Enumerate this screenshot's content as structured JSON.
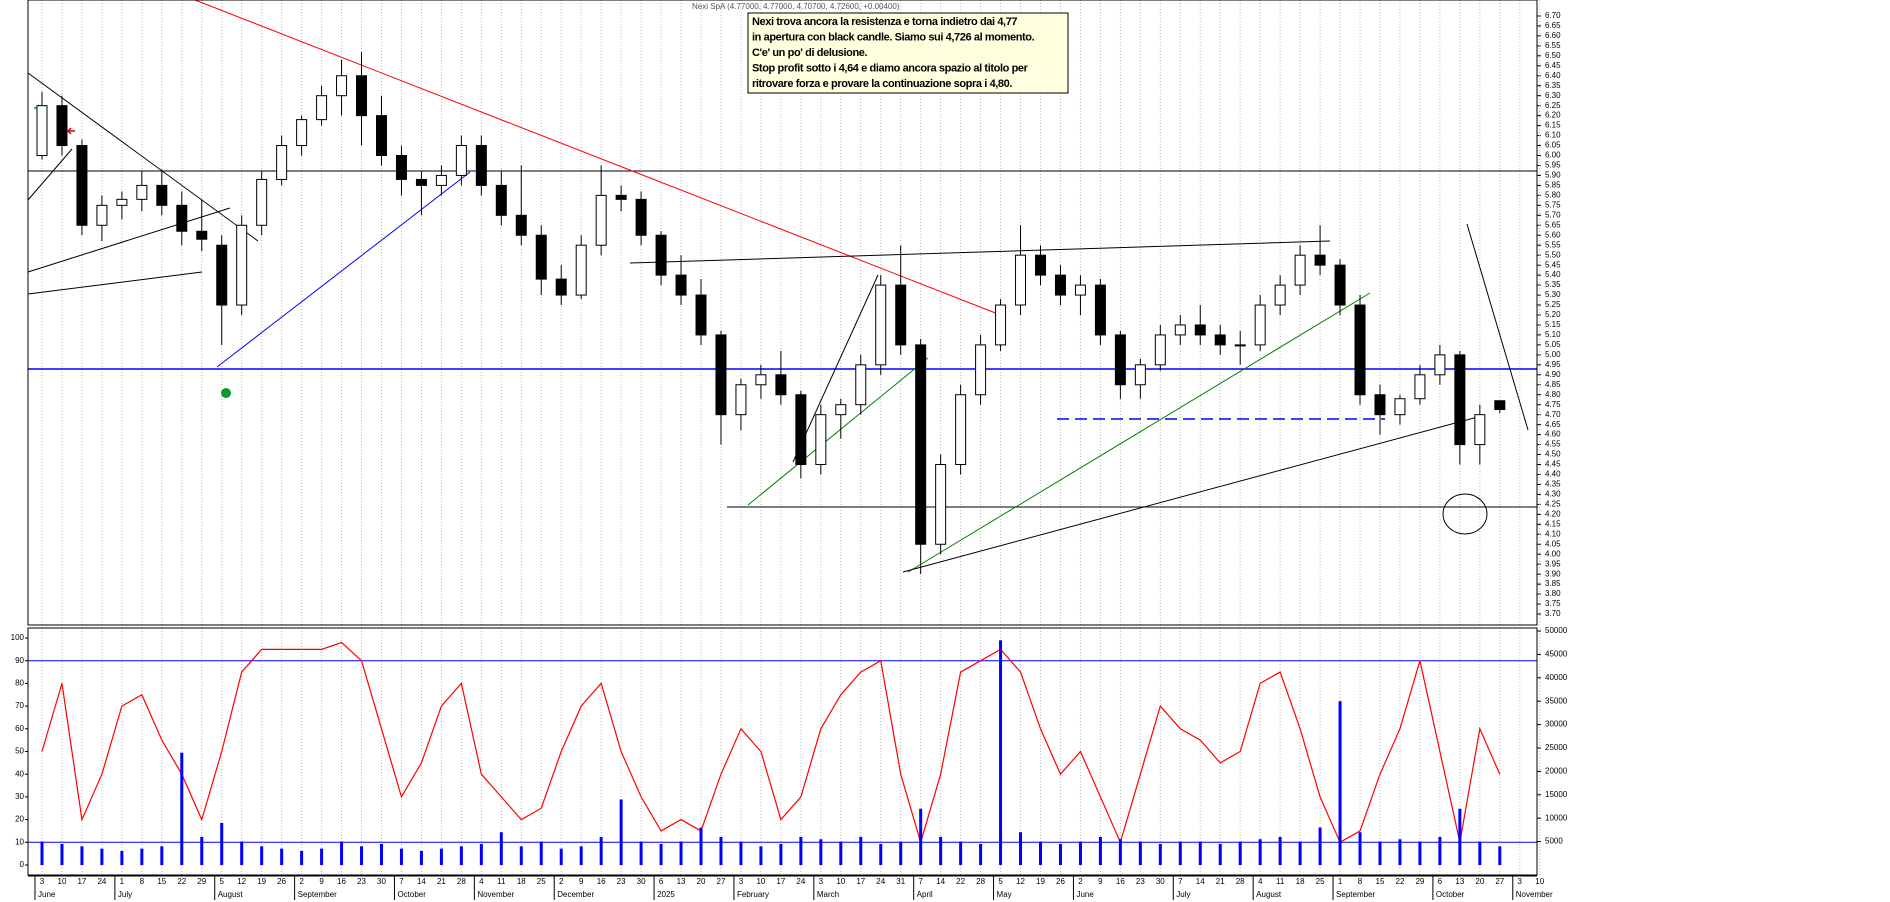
{
  "chart_data": [
    {
      "type": "candlestick",
      "title": "Nexi SpA (4.77000, 4.77000, 4.70700, 4.72600, +0.00400)",
      "annotation": [
        "Nexi trova ancora la resistenza e torna indietro dai 4,77",
        "in apertura con black candle. Siamo sui 4,726 al momento.",
        "C'e' un po' di delusione.",
        "Stop profit sotto i 4,64 e diamo ancora spazio al titolo per",
        "ritrovare forza e provare la continuazione sopra i 4,80."
      ],
      "categories": [
        "3",
        "10",
        "17",
        "24",
        "1",
        "8",
        "15",
        "22",
        "29",
        "5",
        "12",
        "19",
        "26",
        "2",
        "9",
        "16",
        "23",
        "30",
        "7",
        "14",
        "21",
        "28",
        "4",
        "11",
        "18",
        "25",
        "2",
        "9",
        "16",
        "23",
        "30",
        "6",
        "13",
        "20",
        "27",
        "3",
        "10",
        "17",
        "24",
        "3",
        "10",
        "17",
        "24",
        "31",
        "7",
        "14",
        "22",
        "28",
        "5",
        "12",
        "19",
        "26",
        "2",
        "9",
        "16",
        "23",
        "30",
        "7",
        "14",
        "21",
        "28",
        "4",
        "11",
        "18",
        "25",
        "1",
        "8",
        "15",
        "22",
        "29",
        "6",
        "13",
        "20",
        "27",
        "3",
        "10"
      ],
      "months": [
        "June",
        null,
        null,
        null,
        "July",
        null,
        null,
        null,
        null,
        "August",
        null,
        null,
        null,
        "September",
        null,
        null,
        null,
        null,
        "October",
        null,
        null,
        null,
        "November",
        null,
        null,
        null,
        "December",
        null,
        null,
        null,
        null,
        "2025",
        null,
        null,
        null,
        "February",
        null,
        null,
        null,
        "March",
        null,
        null,
        null,
        null,
        "April",
        null,
        null,
        null,
        "May",
        null,
        null,
        null,
        "June",
        null,
        null,
        null,
        null,
        "July",
        null,
        null,
        null,
        "August",
        null,
        null,
        null,
        "September",
        null,
        null,
        null,
        null,
        "October",
        null,
        null,
        null,
        "November",
        null
      ],
      "open": [
        6.0,
        6.25,
        6.05,
        5.65,
        5.75,
        5.78,
        5.85,
        5.75,
        5.62,
        5.55,
        5.25,
        5.65,
        5.88,
        6.05,
        6.18,
        6.3,
        6.4,
        6.2,
        6.0,
        5.88,
        5.85,
        5.9,
        6.05,
        5.85,
        5.7,
        5.6,
        5.38,
        5.3,
        5.55,
        5.8,
        5.78,
        5.6,
        5.4,
        5.3,
        5.1,
        4.7,
        4.85,
        4.9,
        4.8,
        4.45,
        4.7,
        4.75,
        4.95,
        5.35,
        5.05,
        4.05,
        4.45,
        4.8,
        5.05,
        5.25,
        5.5,
        5.4,
        5.3,
        5.35,
        5.1,
        4.85,
        4.95,
        5.1,
        5.15,
        5.1,
        5.05,
        5.05,
        5.25,
        5.35,
        5.5,
        5.45,
        5.25,
        4.8,
        4.7,
        4.78,
        4.9,
        5.0,
        4.55,
        4.77,
        null,
        null
      ],
      "high": [
        6.32,
        6.3,
        6.08,
        5.8,
        5.82,
        5.92,
        5.93,
        5.82,
        5.78,
        5.6,
        5.7,
        5.92,
        6.1,
        6.2,
        6.35,
        6.48,
        6.52,
        6.3,
        6.05,
        5.92,
        5.95,
        6.1,
        6.1,
        5.92,
        5.95,
        5.65,
        5.45,
        5.6,
        5.95,
        5.85,
        5.82,
        5.62,
        5.5,
        5.38,
        5.12,
        4.88,
        4.95,
        5.02,
        4.82,
        4.75,
        4.78,
        5.0,
        5.4,
        5.55,
        5.08,
        4.5,
        4.85,
        5.1,
        5.28,
        5.65,
        5.55,
        5.45,
        5.4,
        5.38,
        5.12,
        4.98,
        5.15,
        5.2,
        5.25,
        5.15,
        5.12,
        5.3,
        5.4,
        5.55,
        5.65,
        5.48,
        5.3,
        4.85,
        4.8,
        4.95,
        5.05,
        5.02,
        4.75,
        4.77,
        null,
        null
      ],
      "low": [
        5.98,
        6.0,
        5.6,
        5.57,
        5.68,
        5.72,
        5.7,
        5.55,
        5.52,
        5.05,
        5.2,
        5.6,
        5.85,
        6.0,
        6.15,
        6.2,
        6.05,
        5.95,
        5.8,
        5.7,
        5.8,
        5.85,
        5.8,
        5.65,
        5.55,
        5.3,
        5.25,
        5.28,
        5.5,
        5.72,
        5.55,
        5.35,
        5.25,
        5.05,
        4.55,
        4.62,
        4.78,
        4.75,
        4.38,
        4.4,
        4.58,
        4.7,
        4.9,
        5.0,
        3.9,
        4.0,
        4.4,
        4.75,
        5.02,
        5.2,
        5.35,
        5.25,
        5.2,
        5.05,
        4.78,
        4.78,
        4.92,
        5.05,
        5.05,
        5.0,
        4.95,
        5.02,
        5.2,
        5.3,
        5.4,
        5.2,
        4.75,
        4.6,
        4.65,
        4.75,
        4.85,
        4.45,
        4.45,
        4.707,
        null,
        null
      ],
      "close": [
        6.25,
        6.05,
        5.65,
        5.75,
        5.78,
        5.85,
        5.75,
        5.62,
        5.58,
        5.25,
        5.65,
        5.88,
        6.05,
        6.18,
        6.3,
        6.4,
        6.2,
        6.0,
        5.88,
        5.85,
        5.9,
        6.05,
        5.85,
        5.7,
        5.6,
        5.38,
        5.3,
        5.55,
        5.8,
        5.78,
        5.6,
        5.4,
        5.3,
        5.1,
        4.7,
        4.85,
        4.9,
        4.8,
        4.45,
        4.7,
        4.75,
        4.95,
        5.35,
        5.05,
        4.05,
        4.45,
        4.8,
        5.05,
        5.25,
        5.5,
        5.4,
        5.3,
        5.35,
        5.1,
        4.85,
        4.95,
        5.1,
        5.15,
        5.1,
        5.05,
        5.05,
        5.25,
        5.35,
        5.5,
        5.45,
        5.25,
        4.8,
        4.7,
        4.78,
        4.9,
        5.0,
        4.55,
        4.7,
        4.726,
        null,
        null
      ],
      "color_up": "#ffffff",
      "color_down": "#000000",
      "ylim": [
        3.645,
        6.78
      ],
      "yticks": [
        {
          "value": 3.7,
          "label": "3.70"
        },
        3.75,
        {
          "value": 3.8,
          "label": "3.80"
        },
        3.85,
        {
          "value": 3.9,
          "label": "3.90"
        },
        3.95,
        {
          "value": 4.0,
          "label": "4.00"
        },
        4.05,
        {
          "value": 4.1,
          "label": "4.10"
        },
        4.15,
        {
          "value": 4.2,
          "label": "4.20"
        },
        4.25,
        {
          "value": 4.3,
          "label": "4.30"
        },
        4.35,
        {
          "value": 4.4,
          "label": "4.40"
        },
        4.45,
        {
          "value": 4.5,
          "label": "4.50"
        },
        4.55,
        {
          "value": 4.6,
          "label": "4.60"
        },
        4.65,
        {
          "value": 4.7,
          "label": "4.70"
        },
        4.75,
        {
          "value": 4.8,
          "label": "4.80"
        },
        4.85,
        {
          "value": 4.9,
          "label": "4.90"
        },
        4.95,
        {
          "value": 5.0,
          "label": "5.00"
        },
        5.05,
        {
          "value": 5.1,
          "label": "5.10"
        },
        5.15,
        {
          "value": 5.2,
          "label": "5.20"
        },
        5.25,
        {
          "value": 5.3,
          "label": "5.30"
        },
        5.35,
        {
          "value": 5.4,
          "label": "5.40"
        },
        5.45,
        {
          "value": 5.5,
          "label": "5.50"
        },
        5.55,
        {
          "value": 5.6,
          "label": "5.60"
        },
        5.65,
        {
          "value": 5.7,
          "label": "5.70"
        },
        5.75,
        {
          "value": 5.8,
          "label": "5.80"
        },
        5.85,
        {
          "value": 5.9,
          "label": "5.90"
        },
        5.95,
        {
          "value": 6.0,
          "label": "6.00"
        },
        6.05,
        {
          "value": 6.1,
          "label": "6.10"
        },
        6.15,
        {
          "value": 6.2,
          "label": "6.20"
        },
        6.25,
        {
          "value": 6.3,
          "label": "6.30"
        },
        6.35,
        {
          "value": 6.4,
          "label": "6.40"
        },
        6.45,
        {
          "value": 6.5,
          "label": "6.50"
        },
        6.55,
        {
          "value": 6.6,
          "label": "6.60"
        },
        6.65,
        {
          "value": 6.7,
          "label": "6.70"
        }
      ],
      "grid": true
    },
    {
      "type": "line",
      "series": [
        {
          "color": "#ff0000",
          "values": [
            50,
            80,
            20,
            40,
            70,
            75,
            55,
            40,
            20,
            50,
            85,
            95,
            95,
            95,
            95,
            98,
            90,
            60,
            30,
            45,
            70,
            80,
            40,
            30,
            20,
            25,
            50,
            70,
            80,
            50,
            30,
            15,
            20,
            15,
            40,
            60,
            50,
            20,
            30,
            60,
            75,
            85,
            90,
            40,
            10,
            40,
            85,
            90,
            95,
            85,
            60,
            40,
            50,
            30,
            10,
            40,
            70,
            60,
            55,
            45,
            50,
            80,
            85,
            60,
            30,
            10,
            15,
            40,
            60,
            90,
            50,
            10,
            60,
            40,
            null,
            null
          ]
        },
        {
          "type": "bar",
          "axis": "y2",
          "color": "#0000ff",
          "values": [
            5000,
            4500,
            4000,
            3500,
            3000,
            3500,
            4000,
            24000,
            6000,
            9000,
            5000,
            4000,
            3500,
            3000,
            3500,
            5000,
            4000,
            4500,
            3500,
            3000,
            3500,
            4000,
            4500,
            7000,
            4000,
            5000,
            3500,
            4000,
            6000,
            14000,
            5000,
            4500,
            5000,
            8000,
            6000,
            5000,
            4000,
            4500,
            6000,
            5500,
            5000,
            6000,
            4500,
            5000,
            12000,
            6000,
            5000,
            4500,
            48000,
            7000,
            5000,
            4500,
            5000,
            6000,
            5500,
            5000,
            4500,
            5000,
            5000,
            4500,
            5000,
            5500,
            6000,
            5000,
            8000,
            35000,
            7000,
            5000,
            5500,
            5000,
            6000,
            12000,
            5000,
            4000,
            null,
            null
          ]
        }
      ],
      "reference_lines": [
        10,
        90
      ],
      "reference_color": "#0000ff",
      "ylim": [
        -4.4,
        104.4
      ],
      "yticks": [
        0,
        10,
        20,
        30,
        40,
        50,
        60,
        70,
        80,
        90,
        100
      ],
      "y2lim": [
        -2140,
        50640
      ],
      "y2ticks": [
        5000,
        10000,
        15000,
        20000,
        25000,
        30000,
        35000,
        40000,
        45000,
        50000
      ]
    }
  ]
}
